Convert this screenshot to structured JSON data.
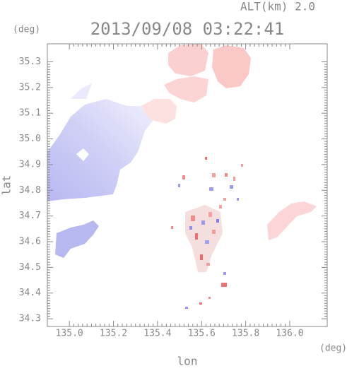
{
  "chart_data": {
    "type": "map",
    "title": "2013/09/08 03:22:41",
    "altitude_label": "ALT(km) 2.0",
    "y_unit": "(deg)",
    "x_unit": "(deg)",
    "ylabel": "lat",
    "xlabel": "lon",
    "xlim": [
      134.9,
      136.17
    ],
    "ylim": [
      34.27,
      35.37
    ],
    "xticks": [
      {
        "value": 135,
        "label": "135.0"
      },
      135.2,
      135.4,
      135.6,
      135.8,
      {
        "value": 136,
        "label": "136.0"
      }
    ],
    "yticks": [
      34.3,
      34.4,
      34.5,
      34.6,
      34.7,
      34.8,
      34.9,
      {
        "value": 35,
        "label": "35.0"
      },
      35.1,
      35.2,
      35.3
    ]
  }
}
